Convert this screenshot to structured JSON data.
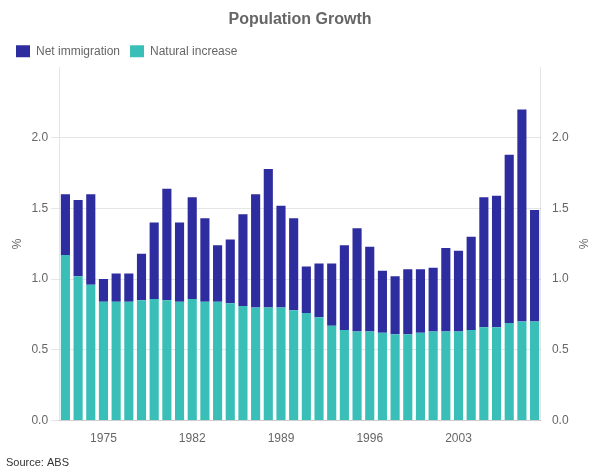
{
  "chart_data": {
    "type": "bar",
    "title": "Population Growth",
    "ylabel": "%",
    "y2label": "%",
    "source": "Source: ABS",
    "categories": [
      null,
      null,
      null,
      "1975",
      null,
      null,
      null,
      null,
      null,
      null,
      "1982",
      null,
      null,
      null,
      null,
      null,
      null,
      "1989",
      null,
      null,
      null,
      null,
      null,
      null,
      "1996",
      null,
      null,
      null,
      null,
      null,
      null,
      "2003",
      null,
      null,
      null,
      null,
      null,
      null
    ],
    "series": [
      {
        "name": "Natural increase",
        "color": "#3abfb8",
        "values": [
          1.17,
          1.02,
          0.96,
          0.84,
          0.84,
          0.84,
          0.85,
          0.86,
          0.85,
          0.84,
          0.86,
          0.84,
          0.84,
          0.83,
          0.81,
          0.8,
          0.8,
          0.8,
          0.78,
          0.76,
          0.73,
          0.67,
          0.64,
          0.63,
          0.63,
          0.62,
          0.61,
          0.61,
          0.62,
          0.63,
          0.63,
          0.63,
          0.64,
          0.66,
          0.66,
          0.69,
          0.7,
          0.7
        ]
      },
      {
        "name": "Net immigration",
        "color": "#2e2d9f",
        "values": [
          0.43,
          0.54,
          0.64,
          0.16,
          0.2,
          0.2,
          0.33,
          0.54,
          0.79,
          0.56,
          0.72,
          0.59,
          0.4,
          0.45,
          0.65,
          0.8,
          0.98,
          0.72,
          0.65,
          0.33,
          0.38,
          0.44,
          0.6,
          0.73,
          0.6,
          0.44,
          0.41,
          0.46,
          0.45,
          0.45,
          0.59,
          0.57,
          0.66,
          0.92,
          0.93,
          1.19,
          1.5,
          0.79
        ]
      }
    ],
    "stacked": true,
    "ylim": [
      0.0,
      2.5
    ],
    "yticks": [
      {
        "value": 0,
        "label": "0.0"
      },
      0.5,
      {
        "value": 1,
        "label": "1.0"
      },
      1.5,
      {
        "value": 2,
        "label": "2.0"
      }
    ],
    "y2lim": [
      0.0,
      2.5
    ],
    "y2ticks": [
      {
        "value": 0,
        "label": "0.0"
      },
      0.5,
      {
        "value": 1,
        "label": "1.0"
      },
      1.5,
      {
        "value": 2,
        "label": "2.0"
      }
    ],
    "grid": "y",
    "legend": "upper left"
  }
}
